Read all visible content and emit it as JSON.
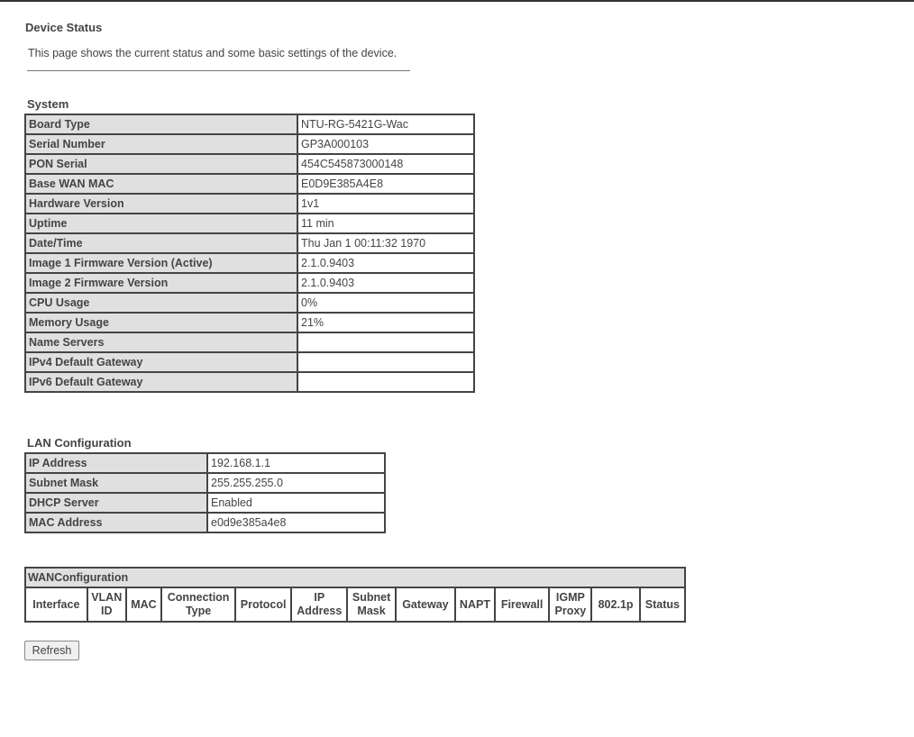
{
  "header": {
    "title": "Device Status",
    "description": "This page shows the current status and some basic settings of the device."
  },
  "system": {
    "title": "System",
    "rows": [
      {
        "label": "Board Type",
        "value": "NTU-RG-5421G-Wac"
      },
      {
        "label": "Serial Number",
        "value": "GP3A000103"
      },
      {
        "label": "PON Serial",
        "value": "454C545873000148"
      },
      {
        "label": "Base WAN MAC",
        "value": "E0D9E385A4E8"
      },
      {
        "label": "Hardware Version",
        "value": "1v1"
      },
      {
        "label": "Uptime",
        "value": "11 min"
      },
      {
        "label": "Date/Time",
        "value": "Thu Jan  1 00:11:32 1970"
      },
      {
        "label": "Image 1 Firmware Version (Active)",
        "value": "2.1.0.9403"
      },
      {
        "label": "Image 2 Firmware Version",
        "value": "2.1.0.9403"
      },
      {
        "label": "CPU Usage",
        "value": "0%"
      },
      {
        "label": "Memory Usage",
        "value": "21%"
      },
      {
        "label": "Name Servers",
        "value": ""
      },
      {
        "label": "IPv4 Default Gateway",
        "value": ""
      },
      {
        "label": "IPv6 Default Gateway",
        "value": ""
      }
    ]
  },
  "lan": {
    "title": "LAN Configuration",
    "rows": [
      {
        "label": "IP Address",
        "value": "192.168.1.1"
      },
      {
        "label": "Subnet Mask",
        "value": "255.255.255.0"
      },
      {
        "label": "DHCP Server",
        "value": "Enabled"
      },
      {
        "label": "MAC Address",
        "value": "e0d9e385a4e8"
      }
    ]
  },
  "wan": {
    "title": "WANConfiguration",
    "columns": [
      "Interface",
      "VLAN ID",
      "MAC",
      "Connection Type",
      "Protocol",
      "IP Address",
      "Subnet Mask",
      "Gateway",
      "NAPT",
      "Firewall",
      "IGMP Proxy",
      "802.1p",
      "Status"
    ]
  },
  "actions": {
    "refresh": "Refresh"
  }
}
